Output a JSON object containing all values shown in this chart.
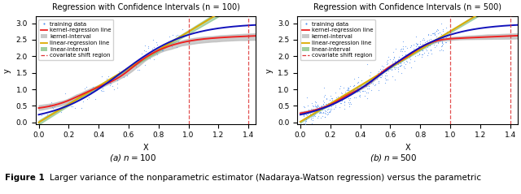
{
  "n_values": [
    100,
    500
  ],
  "subtitles": [
    "(a) $n=100$",
    "(b) $n=500$"
  ],
  "titles": [
    "Regression with Confidence Intervals (n = 100)",
    "Regression with Confidence Intervals (n = 500)"
  ],
  "xlim": [
    -0.02,
    1.45
  ],
  "ylim": [
    -0.05,
    3.2
  ],
  "xlabel": "X",
  "ylabel": "y",
  "vlines": [
    1.0,
    1.4
  ],
  "vline_color": "#dd3333",
  "kernel_color": "#ee2222",
  "kernel_band_color": "#bbbbbb",
  "linear_color": "#ddaa00",
  "linear_band_color": "#77bb77",
  "scatter_color": "#4488ee",
  "blue_curve_color": "#1111bb",
  "caption_bold": "Figure 1",
  "caption_text": "Larger variance of the nonparametric estimator (Nadaraya-Watson regression) versus the parametric",
  "fig_width": 6.4,
  "fig_height": 2.39,
  "dpi": 100
}
